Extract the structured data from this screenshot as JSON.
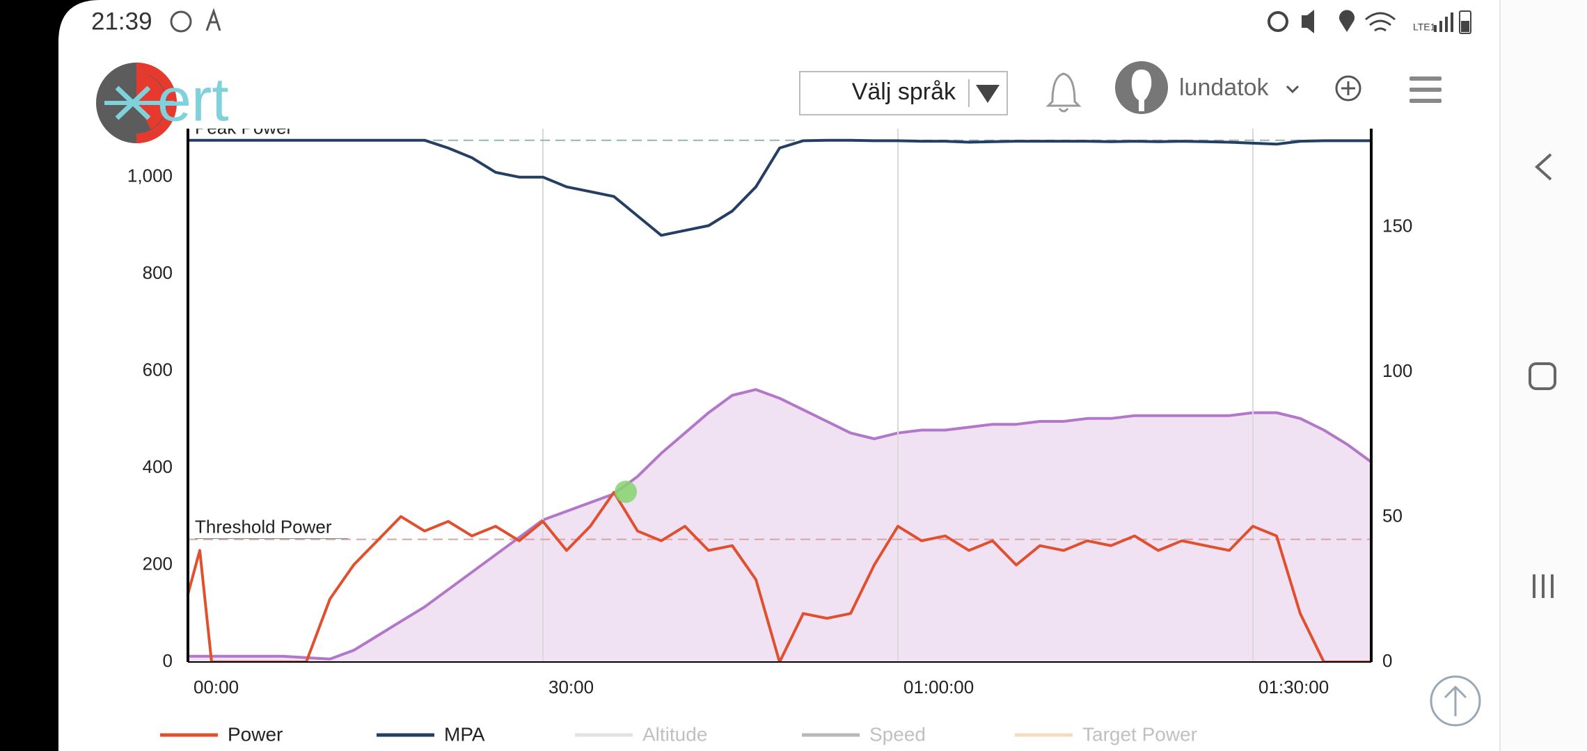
{
  "status_bar": {
    "time": "21:39",
    "network": "LTE1"
  },
  "header": {
    "language_select": "Välj språk",
    "username": "lundatok"
  },
  "chart_data": {
    "type": "line",
    "x": [
      0,
      1,
      2,
      4,
      6,
      8,
      10,
      12,
      14,
      16,
      18,
      20,
      22,
      24,
      26,
      28,
      30,
      32,
      34,
      36,
      38,
      40,
      42,
      44,
      46,
      48,
      50,
      52,
      54,
      56,
      58,
      60,
      62,
      64,
      66,
      68,
      70,
      72,
      74,
      76,
      78,
      80,
      82,
      84,
      86,
      88,
      90,
      92,
      94,
      96,
      98,
      100
    ],
    "xlim": [
      0,
      100
    ],
    "xticks": [
      {
        "value": 0,
        "label": "00:00"
      },
      {
        "value": 30,
        "label": "30:00"
      },
      {
        "value": 60,
        "label": "01:00:00"
      },
      {
        "value": 90,
        "label": "01:30:00"
      }
    ],
    "ylim": [
      0,
      1100
    ],
    "yticks": [
      0,
      200,
      400,
      600,
      800,
      {
        "value": 1000,
        "label": "1,000"
      }
    ],
    "y2lim": [
      0,
      184
    ],
    "y2ticks": [
      0,
      50,
      100,
      150
    ],
    "grid": "x",
    "series": [
      {
        "color": "#b277c9",
        "fill": "#f0e2f3",
        "axis": "y2",
        "kind": "area",
        "values": [
          2,
          2,
          2,
          2,
          2,
          2,
          1.5,
          1,
          4,
          9,
          14,
          19,
          25,
          31,
          37,
          43,
          49,
          52,
          55,
          58,
          64,
          72,
          79,
          86,
          92,
          94,
          91,
          87,
          83,
          79,
          77,
          79,
          80,
          80,
          81,
          82,
          82,
          83,
          83,
          84,
          84,
          85,
          85,
          85,
          85,
          85,
          86,
          86,
          84,
          80,
          75,
          69
        ]
      },
      {
        "name": "Power",
        "color": "#e0502f",
        "kind": "line",
        "values": [
          140,
          230,
          0,
          0,
          0,
          0,
          0,
          130,
          200,
          250,
          300,
          270,
          290,
          260,
          280,
          250,
          290,
          230,
          280,
          350,
          270,
          250,
          280,
          230,
          240,
          170,
          0,
          100,
          90,
          100,
          200,
          280,
          250,
          260,
          230,
          250,
          200,
          240,
          230,
          250,
          240,
          260,
          230,
          250,
          240,
          230,
          280,
          260,
          100,
          0,
          0,
          0
        ]
      },
      {
        "name": "MPA",
        "color": "#243f63",
        "kind": "line",
        "values": [
          1076,
          1076,
          1076,
          1076,
          1076,
          1076,
          1076,
          1076,
          1076,
          1076,
          1076,
          1076,
          1060,
          1040,
          1010,
          1000,
          1000,
          980,
          970,
          960,
          920,
          880,
          890,
          900,
          930,
          980,
          1060,
          1075,
          1076,
          1076,
          1075,
          1075,
          1074,
          1074,
          1072,
          1073,
          1074,
          1074,
          1074,
          1074,
          1073,
          1074,
          1073,
          1074,
          1073,
          1072,
          1070,
          1068,
          1074,
          1075,
          1075,
          1075
        ]
      }
    ],
    "inactive_series": [
      {
        "name": "Altitude",
        "color": "#e2e2e2"
      },
      {
        "name": "Speed",
        "color": "#b8b8b8"
      },
      {
        "name": "Target Power",
        "color": "#f3dcc0"
      }
    ],
    "reference_lines": [
      {
        "label": "Peak Power",
        "value": 1076,
        "color": "#8fb8b2"
      },
      {
        "label": "Threshold Power",
        "value": 253,
        "color": "#d7a3a3"
      }
    ],
    "highlight": {
      "x": 37,
      "y": 351,
      "color": "#86d36f"
    }
  }
}
